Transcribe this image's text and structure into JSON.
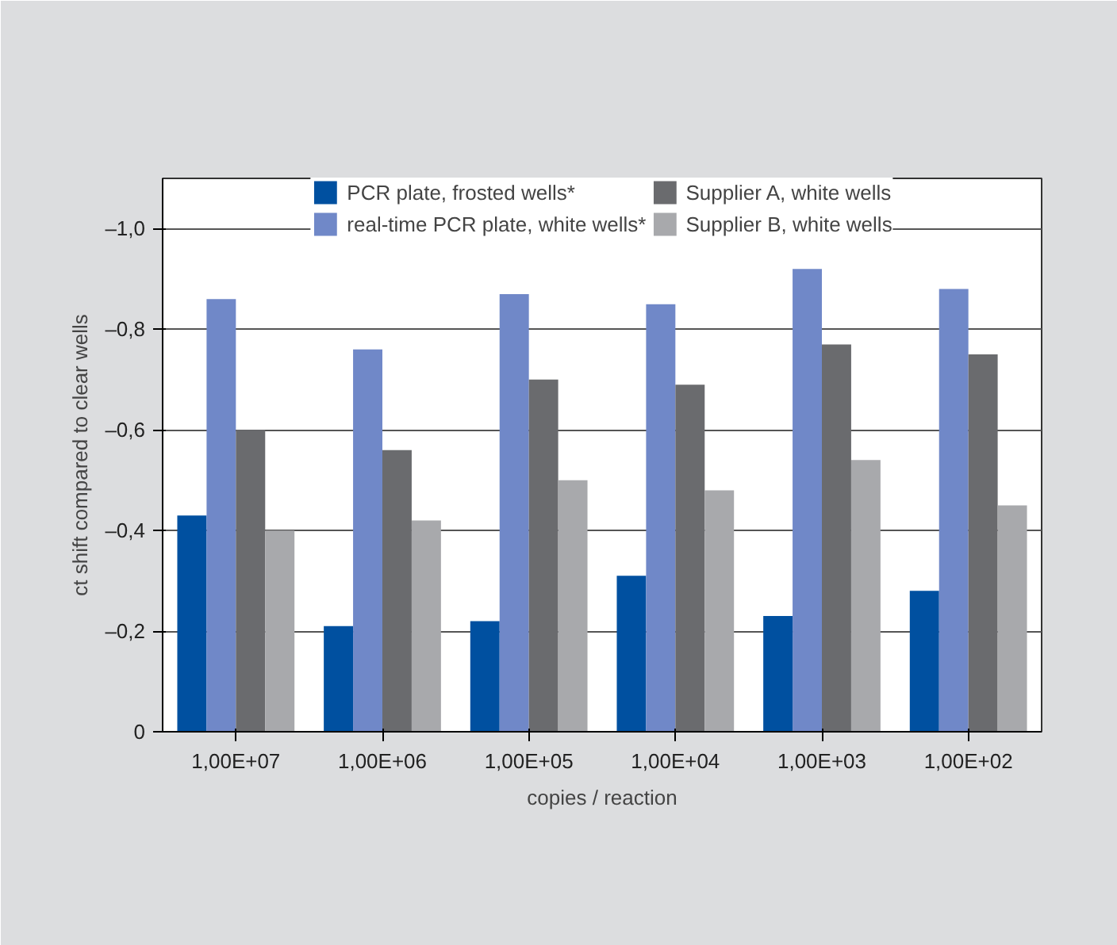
{
  "chart_data": {
    "type": "bar",
    "xlabel": "copies / reaction",
    "ylabel": "ct shift compared to clear wells",
    "categories": [
      "1,00E+07",
      "1,00E+06",
      "1,00E+05",
      "1,00E+04",
      "1,00E+03",
      "1,00E+02"
    ],
    "series": [
      {
        "name": "PCR plate, frosted wells*",
        "color": "#0050a0",
        "values": [
          -0.43,
          -0.21,
          -0.22,
          -0.31,
          -0.23,
          -0.28
        ]
      },
      {
        "name": "real-time PCR plate, white wells*",
        "color": "#7088c8",
        "values": [
          -0.86,
          -0.76,
          -0.87,
          -0.85,
          -0.92,
          -0.88
        ]
      },
      {
        "name": "Supplier A, white wells",
        "color": "#6a6b6e",
        "values": [
          -0.6,
          -0.56,
          -0.7,
          -0.69,
          -0.77,
          -0.75
        ]
      },
      {
        "name": "Supplier B, white wells",
        "color": "#a8a9ac",
        "values": [
          -0.4,
          -0.42,
          -0.5,
          -0.48,
          -0.54,
          -0.45
        ]
      }
    ],
    "ylim": [
      0,
      -1.1
    ],
    "yticks": [
      0,
      {
        "value": -0.2,
        "label": "–0,2"
      },
      {
        "value": -0.4,
        "label": "–0,4"
      },
      {
        "value": -0.6,
        "label": "–0,6"
      },
      {
        "value": -0.8,
        "label": "–0,8"
      },
      {
        "value": -1.0,
        "label": "–1,0"
      }
    ],
    "grid": "y",
    "legend": "top"
  }
}
